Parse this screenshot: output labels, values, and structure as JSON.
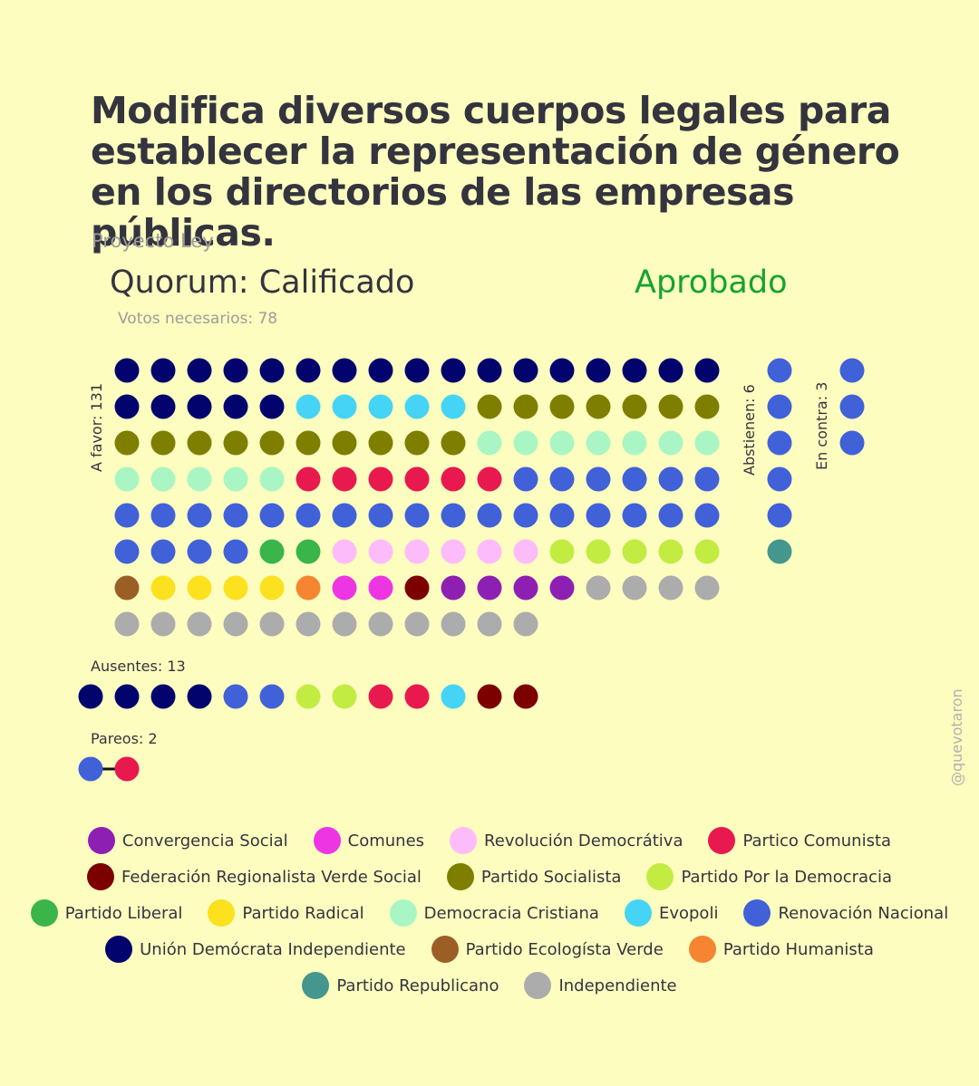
{
  "header": {
    "title": "Modifica diversos cuerpos legales para establecer la representación de género en los directorios de las empresas públicas.",
    "subtitle": "Proyecto Ley",
    "quorum": "Quorum: Calificado",
    "status": "Aprobado",
    "status_color": "#16a330",
    "votes_needed": "Votos necesarios: 78"
  },
  "credit": "@quevotaron",
  "parties": {
    "CS": {
      "name": "Convergencia Social",
      "color": "#8e1fb3"
    },
    "COM": {
      "name": "Comunes",
      "color": "#ee35e4"
    },
    "RD": {
      "name": "Revolución Democrátiva",
      "color": "#fcbcfb"
    },
    "PC": {
      "name": "Partico Comunista",
      "color": "#e8194f"
    },
    "FRVS": {
      "name": "Federación Regionalista Verde Social",
      "color": "#7d0000"
    },
    "PS": {
      "name": "Partido Socialista",
      "color": "#7e7e00"
    },
    "PPD": {
      "name": "Partido Por la Democracia",
      "color": "#c2ec42"
    },
    "PL": {
      "name": "Partido Liberal",
      "color": "#39b54a"
    },
    "PR": {
      "name": "Partido Radical",
      "color": "#fce11e"
    },
    "DC": {
      "name": "Democracia Cristiana",
      "color": "#a9f6c4"
    },
    "EVO": {
      "name": "Evopoli",
      "color": "#45d4f5"
    },
    "RN": {
      "name": "Renovación Nacional",
      "color": "#4161d8"
    },
    "UDI": {
      "name": "Unión Demócrata Independiente",
      "color": "#03036e"
    },
    "PEV": {
      "name": "Partido Ecologísta Verde",
      "color": "#9b5f25"
    },
    "PH": {
      "name": "Partido Humanista",
      "color": "#f58531"
    },
    "REP": {
      "name": "Partido Republicano",
      "color": "#44968e"
    },
    "IND": {
      "name": "Independiente",
      "color": "#acacac"
    }
  },
  "legend_rows": [
    [
      "CS",
      "COM",
      "RD",
      "PC"
    ],
    [
      "FRVS",
      "PS",
      "PPD"
    ],
    [
      "PL",
      "PR",
      "DC",
      "EVO",
      "RN"
    ],
    [
      "UDI",
      "PEV",
      "PH"
    ],
    [
      "REP",
      "IND"
    ]
  ],
  "chart_data": {
    "type": "parliament-dot-grid",
    "groups": [
      {
        "label": "A favor: 131",
        "count": 131,
        "parties": [
          {
            "party": "UDI",
            "count": 22
          },
          {
            "party": "EVO",
            "count": 5
          },
          {
            "party": "PS",
            "count": 17
          },
          {
            "party": "DC",
            "count": 12
          },
          {
            "party": "PC",
            "count": 6
          },
          {
            "party": "RN",
            "count": 27
          },
          {
            "party": "PL",
            "count": 2
          },
          {
            "party": "RD",
            "count": 6
          },
          {
            "party": "PPD",
            "count": 5
          },
          {
            "party": "PEV",
            "count": 1
          },
          {
            "party": "PR",
            "count": 4
          },
          {
            "party": "PH",
            "count": 1
          },
          {
            "party": "COM",
            "count": 2
          },
          {
            "party": "FRVS",
            "count": 1
          },
          {
            "party": "CS",
            "count": 4
          },
          {
            "party": "IND",
            "count": 16
          }
        ]
      },
      {
        "label": "Abstienen: 6",
        "count": 6,
        "parties": [
          {
            "party": "RN",
            "count": 5
          },
          {
            "party": "REP",
            "count": 1
          }
        ]
      },
      {
        "label": "En contra: 3",
        "count": 3,
        "parties": [
          {
            "party": "RN",
            "count": 3
          }
        ]
      },
      {
        "label": "Ausentes: 13",
        "count": 13,
        "parties": [
          {
            "party": "UDI",
            "count": 4
          },
          {
            "party": "RN",
            "count": 2
          },
          {
            "party": "PPD",
            "count": 2
          },
          {
            "party": "PC",
            "count": 2
          },
          {
            "party": "EVO",
            "count": 1
          },
          {
            "party": "FRVS",
            "count": 2
          }
        ]
      },
      {
        "label": "Pareos: 2",
        "count": 2,
        "parties": [
          {
            "party": "RN",
            "count": 1
          },
          {
            "party": "PC",
            "count": 1
          }
        ]
      }
    ]
  }
}
